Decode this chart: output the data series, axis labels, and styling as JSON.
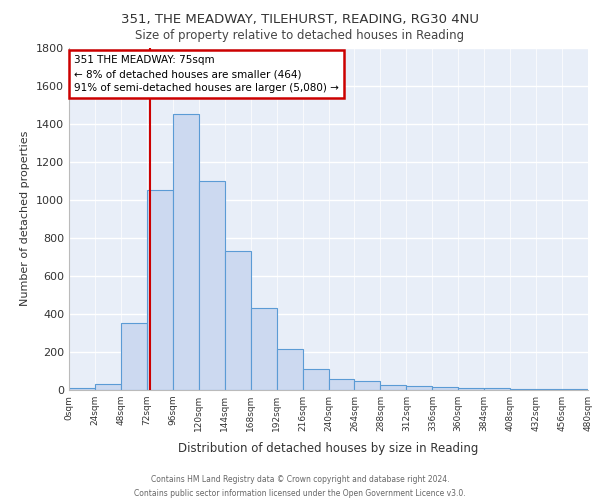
{
  "title_line1": "351, THE MEADWAY, TILEHURST, READING, RG30 4NU",
  "title_line2": "Size of property relative to detached houses in Reading",
  "xlabel": "Distribution of detached houses by size in Reading",
  "ylabel": "Number of detached properties",
  "bin_edges": [
    0,
    24,
    48,
    72,
    96,
    120,
    144,
    168,
    192,
    216,
    240,
    264,
    288,
    312,
    336,
    360,
    384,
    408,
    432,
    456,
    480
  ],
  "bar_heights": [
    10,
    30,
    350,
    1050,
    1450,
    1100,
    730,
    430,
    215,
    110,
    60,
    45,
    25,
    20,
    15,
    10,
    8,
    6,
    5,
    5
  ],
  "bar_color": "#ccd9f0",
  "bar_edge_color": "#5b9bd5",
  "property_size": 75,
  "property_line_color": "#cc0000",
  "annotation_text": "351 THE MEADWAY: 75sqm\n← 8% of detached houses are smaller (464)\n91% of semi-detached houses are larger (5,080) →",
  "annotation_box_color": "#ffffff",
  "annotation_box_edge_color": "#cc0000",
  "ylim": [
    0,
    1800
  ],
  "yticks": [
    0,
    200,
    400,
    600,
    800,
    1000,
    1200,
    1400,
    1600,
    1800
  ],
  "xtick_labels": [
    "0sqm",
    "24sqm",
    "48sqm",
    "72sqm",
    "96sqm",
    "120sqm",
    "144sqm",
    "168sqm",
    "192sqm",
    "216sqm",
    "240sqm",
    "264sqm",
    "288sqm",
    "312sqm",
    "336sqm",
    "360sqm",
    "384sqm",
    "408sqm",
    "432sqm",
    "456sqm",
    "480sqm"
  ],
  "background_color": "#e8eef8",
  "grid_color": "#ffffff",
  "footer_line1": "Contains HM Land Registry data © Crown copyright and database right 2024.",
  "footer_line2": "Contains public sector information licensed under the Open Government Licence v3.0."
}
